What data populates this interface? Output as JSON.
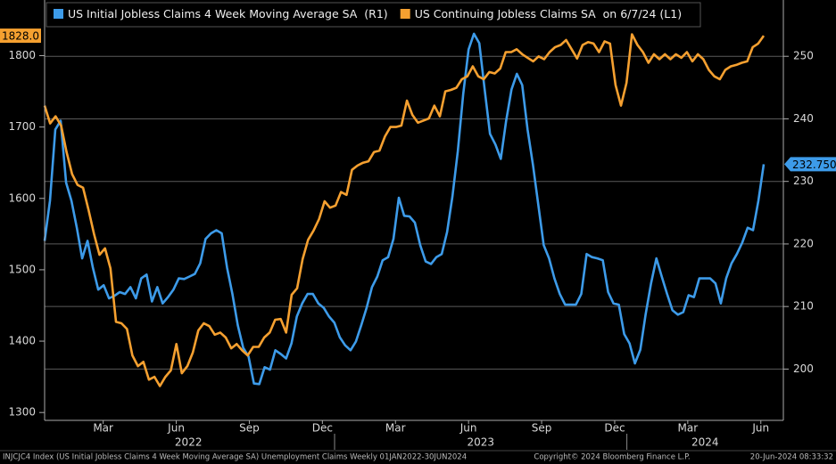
{
  "chart_data": {
    "type": "line",
    "grid": true,
    "ylim": [
      1289,
      1878
    ],
    "yticks": [
      1300,
      1400,
      1500,
      1600,
      1700,
      1800
    ],
    "y2lim": [
      191.8,
      259
    ],
    "y2ticks": [
      200,
      210,
      220,
      230,
      240,
      250
    ],
    "xticks": [
      {
        "value": "2022-03",
        "label": "Mar"
      },
      {
        "value": "2022-06",
        "label": "Jun"
      },
      {
        "value": "2022-09",
        "label": "Sep"
      },
      {
        "value": "2022-12",
        "label": "Dec"
      },
      {
        "value": "2023-03",
        "label": "Mar"
      },
      {
        "value": "2023-06",
        "label": "Jun"
      },
      {
        "value": "2023-09",
        "label": "Sep"
      },
      {
        "value": "2023-12",
        "label": "Dec"
      },
      {
        "value": "2024-03",
        "label": "Mar"
      },
      {
        "value": "2024-06",
        "label": "Jun"
      }
    ],
    "years": [
      "2022",
      "2023",
      "2024"
    ],
    "series": [
      {
        "name": "US Initial Jobless Claims 4 Week Moving Average SA  (R1)",
        "color": "#3d9be9",
        "axis": "y2",
        "last_label": "232.750",
        "values": [
          220.5,
          226.9,
          238.3,
          239.7,
          229.8,
          226.9,
          222.6,
          217.7,
          220.5,
          216.2,
          212.7,
          213.4,
          211.3,
          211.7,
          212.3,
          212.0,
          213.1,
          211.3,
          214.5,
          215.1,
          210.8,
          213.1,
          210.5,
          211.5,
          212.7,
          214.5,
          214.4,
          214.8,
          215.2,
          216.9,
          220.8,
          221.7,
          222.2,
          221.7,
          216.2,
          212.0,
          207.0,
          203.4,
          202.0,
          197.7,
          197.6,
          200.3,
          199.9,
          203.0,
          202.4,
          201.7,
          204.1,
          208.4,
          210.5,
          212.0,
          212.0,
          210.5,
          209.8,
          208.4,
          207.4,
          205.1,
          203.8,
          203.0,
          204.4,
          207.0,
          209.8,
          213.1,
          214.8,
          217.4,
          217.9,
          220.8,
          227.4,
          224.5,
          224.4,
          223.4,
          219.8,
          217.2,
          216.8,
          217.9,
          218.4,
          221.9,
          227.6,
          234.8,
          244.0,
          251.1,
          253.6,
          252.1,
          244.7,
          237.6,
          235.9,
          233.6,
          239.7,
          244.7,
          247.2,
          245.4,
          238.3,
          232.6,
          226.2,
          219.8,
          217.7,
          214.5,
          212.0,
          210.3,
          210.3,
          210.3,
          212.0,
          218.4,
          217.9,
          217.7,
          217.4,
          212.3,
          210.5,
          210.3,
          205.6,
          204.1,
          200.9,
          203.1,
          208.8,
          213.7,
          217.7,
          214.8,
          212.0,
          209.4,
          208.7,
          209.1,
          211.8,
          211.5,
          214.5,
          214.5,
          214.5,
          213.7,
          210.5,
          214.5,
          216.9,
          218.4,
          220.2,
          222.6,
          222.2,
          226.9,
          232.75
        ]
      },
      {
        "name": "US Continuing Jobless Claims SA  on 6/7/24 (L1)",
        "color": "#f5a030",
        "last_label": "1828.0",
        "values": [
          1730,
          1705,
          1715,
          1702,
          1665,
          1634,
          1619,
          1615,
          1584,
          1550,
          1521,
          1530,
          1502,
          1427,
          1425,
          1417,
          1380,
          1365,
          1371,
          1346,
          1350,
          1337,
          1350,
          1359,
          1396,
          1355,
          1365,
          1384,
          1415,
          1425,
          1421,
          1409,
          1412,
          1405,
          1390,
          1396,
          1387,
          1380,
          1392,
          1392,
          1405,
          1412,
          1430,
          1431,
          1412,
          1465,
          1474,
          1515,
          1542,
          1555,
          1571,
          1596,
          1587,
          1590,
          1609,
          1605,
          1640,
          1646,
          1650,
          1652,
          1665,
          1667,
          1687,
          1700,
          1700,
          1702,
          1737,
          1717,
          1706,
          1709,
          1712,
          1730,
          1715,
          1750,
          1752,
          1755,
          1767,
          1771,
          1785,
          1771,
          1767,
          1777,
          1775,
          1782,
          1805,
          1805,
          1809,
          1802,
          1797,
          1792,
          1799,
          1795,
          1805,
          1812,
          1815,
          1822,
          1809,
          1796,
          1815,
          1819,
          1817,
          1805,
          1820,
          1817,
          1759,
          1730,
          1762,
          1830,
          1815,
          1805,
          1790,
          1802,
          1795,
          1802,
          1795,
          1802,
          1797,
          1805,
          1792,
          1802,
          1795,
          1780,
          1771,
          1767,
          1780,
          1785,
          1787,
          1790,
          1792,
          1812,
          1817,
          1828
        ]
      }
    ]
  },
  "footer": {
    "left": "INJCJC4 Index (US Initial Jobless Claims 4 Week Moving Average SA) Unemployment Claims  Weekly 01JAN2022-30JUN2024",
    "center": "Copyright© 2024 Bloomberg Finance L.P.",
    "right": "20-Jun-2024 08:33:32"
  }
}
